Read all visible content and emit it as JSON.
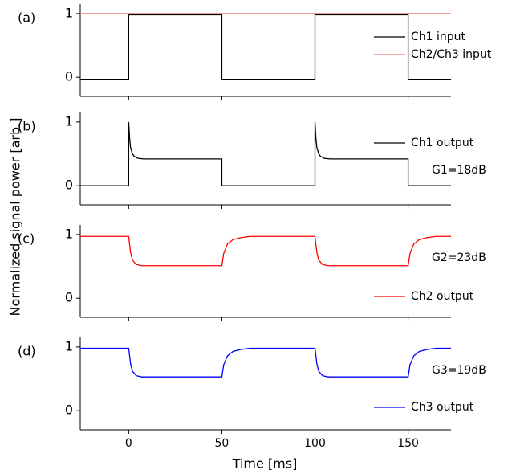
{
  "ylabel": "Normalized signal power [arb.]",
  "xlabel": "Time [ms]",
  "chart_data": [
    {
      "type": "line",
      "panel_label": "(a)",
      "xlim": [
        -26,
        173
      ],
      "ylim": [
        -0.3,
        1.15
      ],
      "xticks": [
        0,
        50,
        100,
        150
      ],
      "yticks": [
        0,
        1
      ],
      "series": [
        {
          "name": "Ch1 input",
          "color": "#000000",
          "x": [
            -26,
            0,
            0,
            50,
            50,
            100,
            100,
            150,
            150,
            173
          ],
          "values": [
            -0.03,
            -0.03,
            0.98,
            0.98,
            -0.03,
            -0.03,
            0.98,
            0.98,
            -0.03,
            -0.03
          ]
        },
        {
          "name": "Ch2/Ch3 input",
          "color": "#e87878",
          "x": [
            -26,
            173
          ],
          "values": [
            1,
            1
          ]
        }
      ]
    },
    {
      "type": "line",
      "panel_label": "(b)",
      "annotation": "G1=18dB",
      "xlim": [
        -26,
        173
      ],
      "ylim": [
        -0.3,
        1.15
      ],
      "xticks": [
        0,
        50,
        100,
        150
      ],
      "yticks": [
        0,
        1
      ],
      "series": [
        {
          "name": "Ch1 output",
          "color": "#000000",
          "x": [
            -26,
            0,
            0,
            0.5,
            1,
            2,
            3,
            5,
            8,
            50,
            50,
            100,
            100,
            100.5,
            101,
            102,
            103,
            105,
            108,
            150,
            150,
            173
          ],
          "values": [
            0,
            0,
            1.0,
            0.75,
            0.6,
            0.5,
            0.46,
            0.43,
            0.42,
            0.42,
            0,
            0,
            1.0,
            0.75,
            0.6,
            0.5,
            0.46,
            0.43,
            0.42,
            0.42,
            0,
            0
          ]
        }
      ]
    },
    {
      "type": "line",
      "panel_label": "(c)",
      "annotation": "G2=23dB",
      "xlim": [
        -26,
        173
      ],
      "ylim": [
        -0.3,
        1.15
      ],
      "xticks": [
        0,
        50,
        100,
        150
      ],
      "yticks": [
        0,
        1
      ],
      "series": [
        {
          "name": "Ch2 output",
          "color": "#ff0000",
          "x": [
            -26,
            0,
            1,
            2,
            4,
            7,
            50,
            51,
            53,
            56,
            60,
            65,
            100,
            101,
            102,
            104,
            107,
            150,
            151,
            153,
            156,
            160,
            165,
            173
          ],
          "values": [
            0.97,
            0.97,
            0.72,
            0.6,
            0.53,
            0.51,
            0.51,
            0.7,
            0.85,
            0.92,
            0.95,
            0.97,
            0.97,
            0.72,
            0.6,
            0.53,
            0.51,
            0.51,
            0.7,
            0.85,
            0.92,
            0.95,
            0.97,
            0.97
          ]
        }
      ]
    },
    {
      "type": "line",
      "panel_label": "(d)",
      "annotation": "G3=19dB",
      "xlim": [
        -26,
        173
      ],
      "ylim": [
        -0.3,
        1.15
      ],
      "xticks": [
        0,
        50,
        100,
        150
      ],
      "yticks": [
        0,
        1
      ],
      "series": [
        {
          "name": "Ch3 output",
          "color": "#0000ff",
          "x": [
            -26,
            0,
            1,
            2,
            4,
            7,
            50,
            51,
            53,
            56,
            60,
            65,
            100,
            101,
            102,
            104,
            107,
            150,
            151,
            153,
            156,
            160,
            165,
            173
          ],
          "values": [
            0.98,
            0.98,
            0.74,
            0.62,
            0.55,
            0.53,
            0.53,
            0.72,
            0.86,
            0.93,
            0.96,
            0.98,
            0.98,
            0.74,
            0.62,
            0.55,
            0.53,
            0.53,
            0.72,
            0.86,
            0.93,
            0.96,
            0.98,
            0.98
          ]
        }
      ]
    }
  ]
}
